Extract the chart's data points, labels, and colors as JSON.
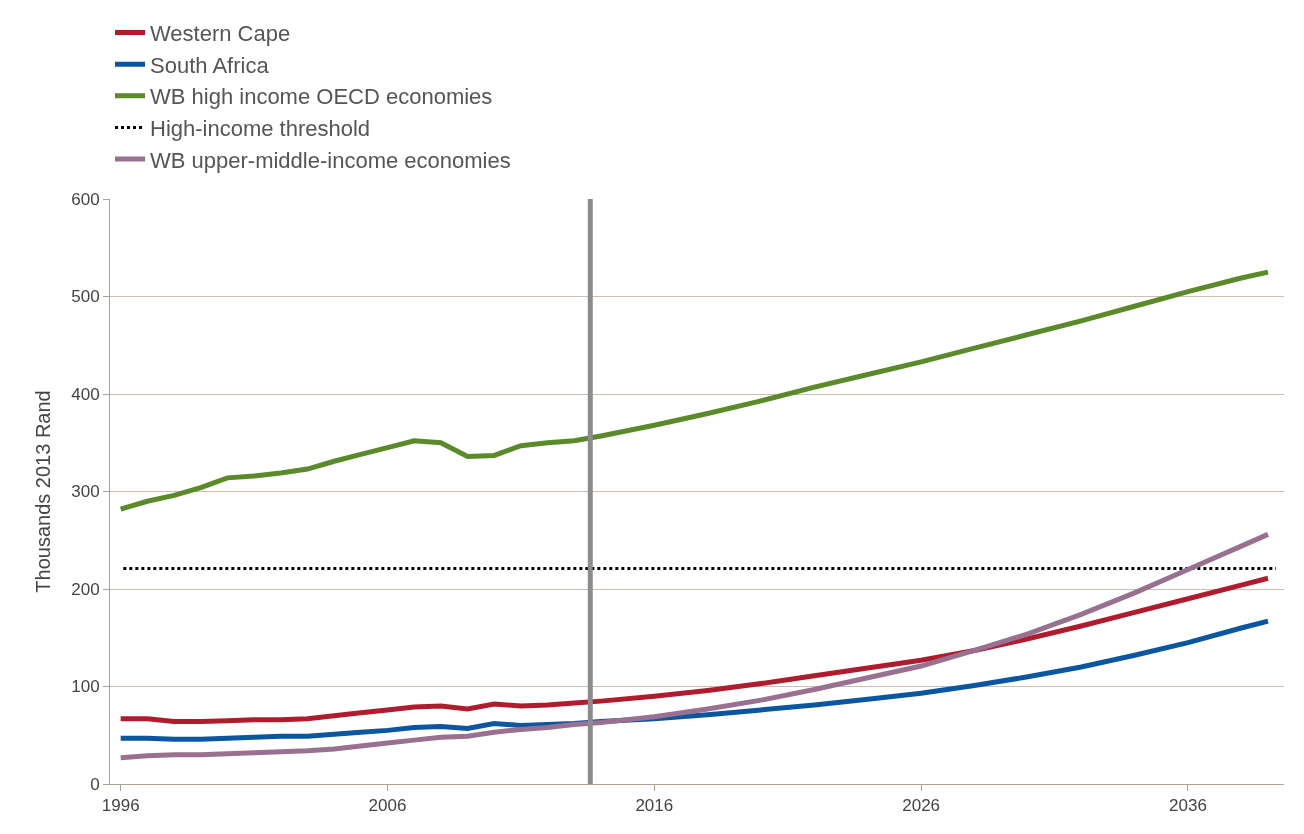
{
  "chart_data": {
    "type": "line",
    "ylabel": "Thousands 2013 Rand",
    "x": [
      1996,
      1997,
      1998,
      1999,
      2000,
      2001,
      2002,
      2003,
      2004,
      2005,
      2006,
      2007,
      2008,
      2009,
      2010,
      2011,
      2012,
      2013,
      2014,
      2016,
      2018,
      2020,
      2022,
      2024,
      2026,
      2028,
      2030,
      2032,
      2034,
      2036,
      2038,
      2039
    ],
    "series": [
      {
        "name": "Western Cape",
        "color": "#b01c2e",
        "values": [
          67,
          67,
          64,
          64,
          65,
          66,
          66,
          67,
          70,
          73,
          76,
          79,
          80,
          77,
          82,
          80,
          81,
          83,
          85,
          90,
          96,
          103,
          111,
          119,
          127,
          137,
          149,
          162,
          176,
          190,
          204,
          211
        ]
      },
      {
        "name": "South Africa",
        "color": "#0a56a0",
        "values": [
          47,
          47,
          46,
          46,
          47,
          48,
          49,
          49,
          51,
          53,
          55,
          58,
          59,
          57,
          62,
          60,
          61,
          62,
          64,
          67,
          71,
          76,
          81,
          87,
          93,
          101,
          110,
          120,
          132,
          145,
          160,
          167
        ]
      },
      {
        "name": "WB high income OECD economies",
        "color": "#5a8a2a",
        "values": [
          282,
          290,
          296,
          304,
          314,
          316,
          319,
          323,
          331,
          338,
          345,
          352,
          350,
          336,
          337,
          347,
          350,
          352,
          357,
          368,
          380,
          393,
          407,
          420,
          433,
          447,
          461,
          475,
          490,
          505,
          519,
          525
        ]
      },
      {
        "name": "WB upper-middle-income economies",
        "color": "#9a7090",
        "values": [
          27,
          29,
          30,
          30,
          31,
          32,
          33,
          34,
          36,
          39,
          42,
          45,
          48,
          49,
          53,
          56,
          58,
          61,
          63,
          69,
          77,
          86,
          97,
          109,
          121,
          137,
          154,
          174,
          196,
          220,
          244,
          256
        ]
      }
    ],
    "ref_lines": [
      {
        "axis": "y",
        "value": 221,
        "label": "High-income threshold",
        "color": "#000000",
        "line_style": "dotted"
      },
      {
        "axis": "x",
        "value": 2013.6,
        "color": "#8c8c8c",
        "line_style": "solid"
      }
    ],
    "xlim": [
      1995.6,
      2039.6
    ],
    "xticks": [
      1996,
      2006,
      2016,
      2026,
      2036
    ],
    "ylim": [
      0,
      600
    ],
    "yticks": [
      0,
      100,
      200,
      300,
      400,
      500,
      600
    ],
    "grid": "y",
    "legend": "top left",
    "marker": "none",
    "line_style": "solid"
  }
}
